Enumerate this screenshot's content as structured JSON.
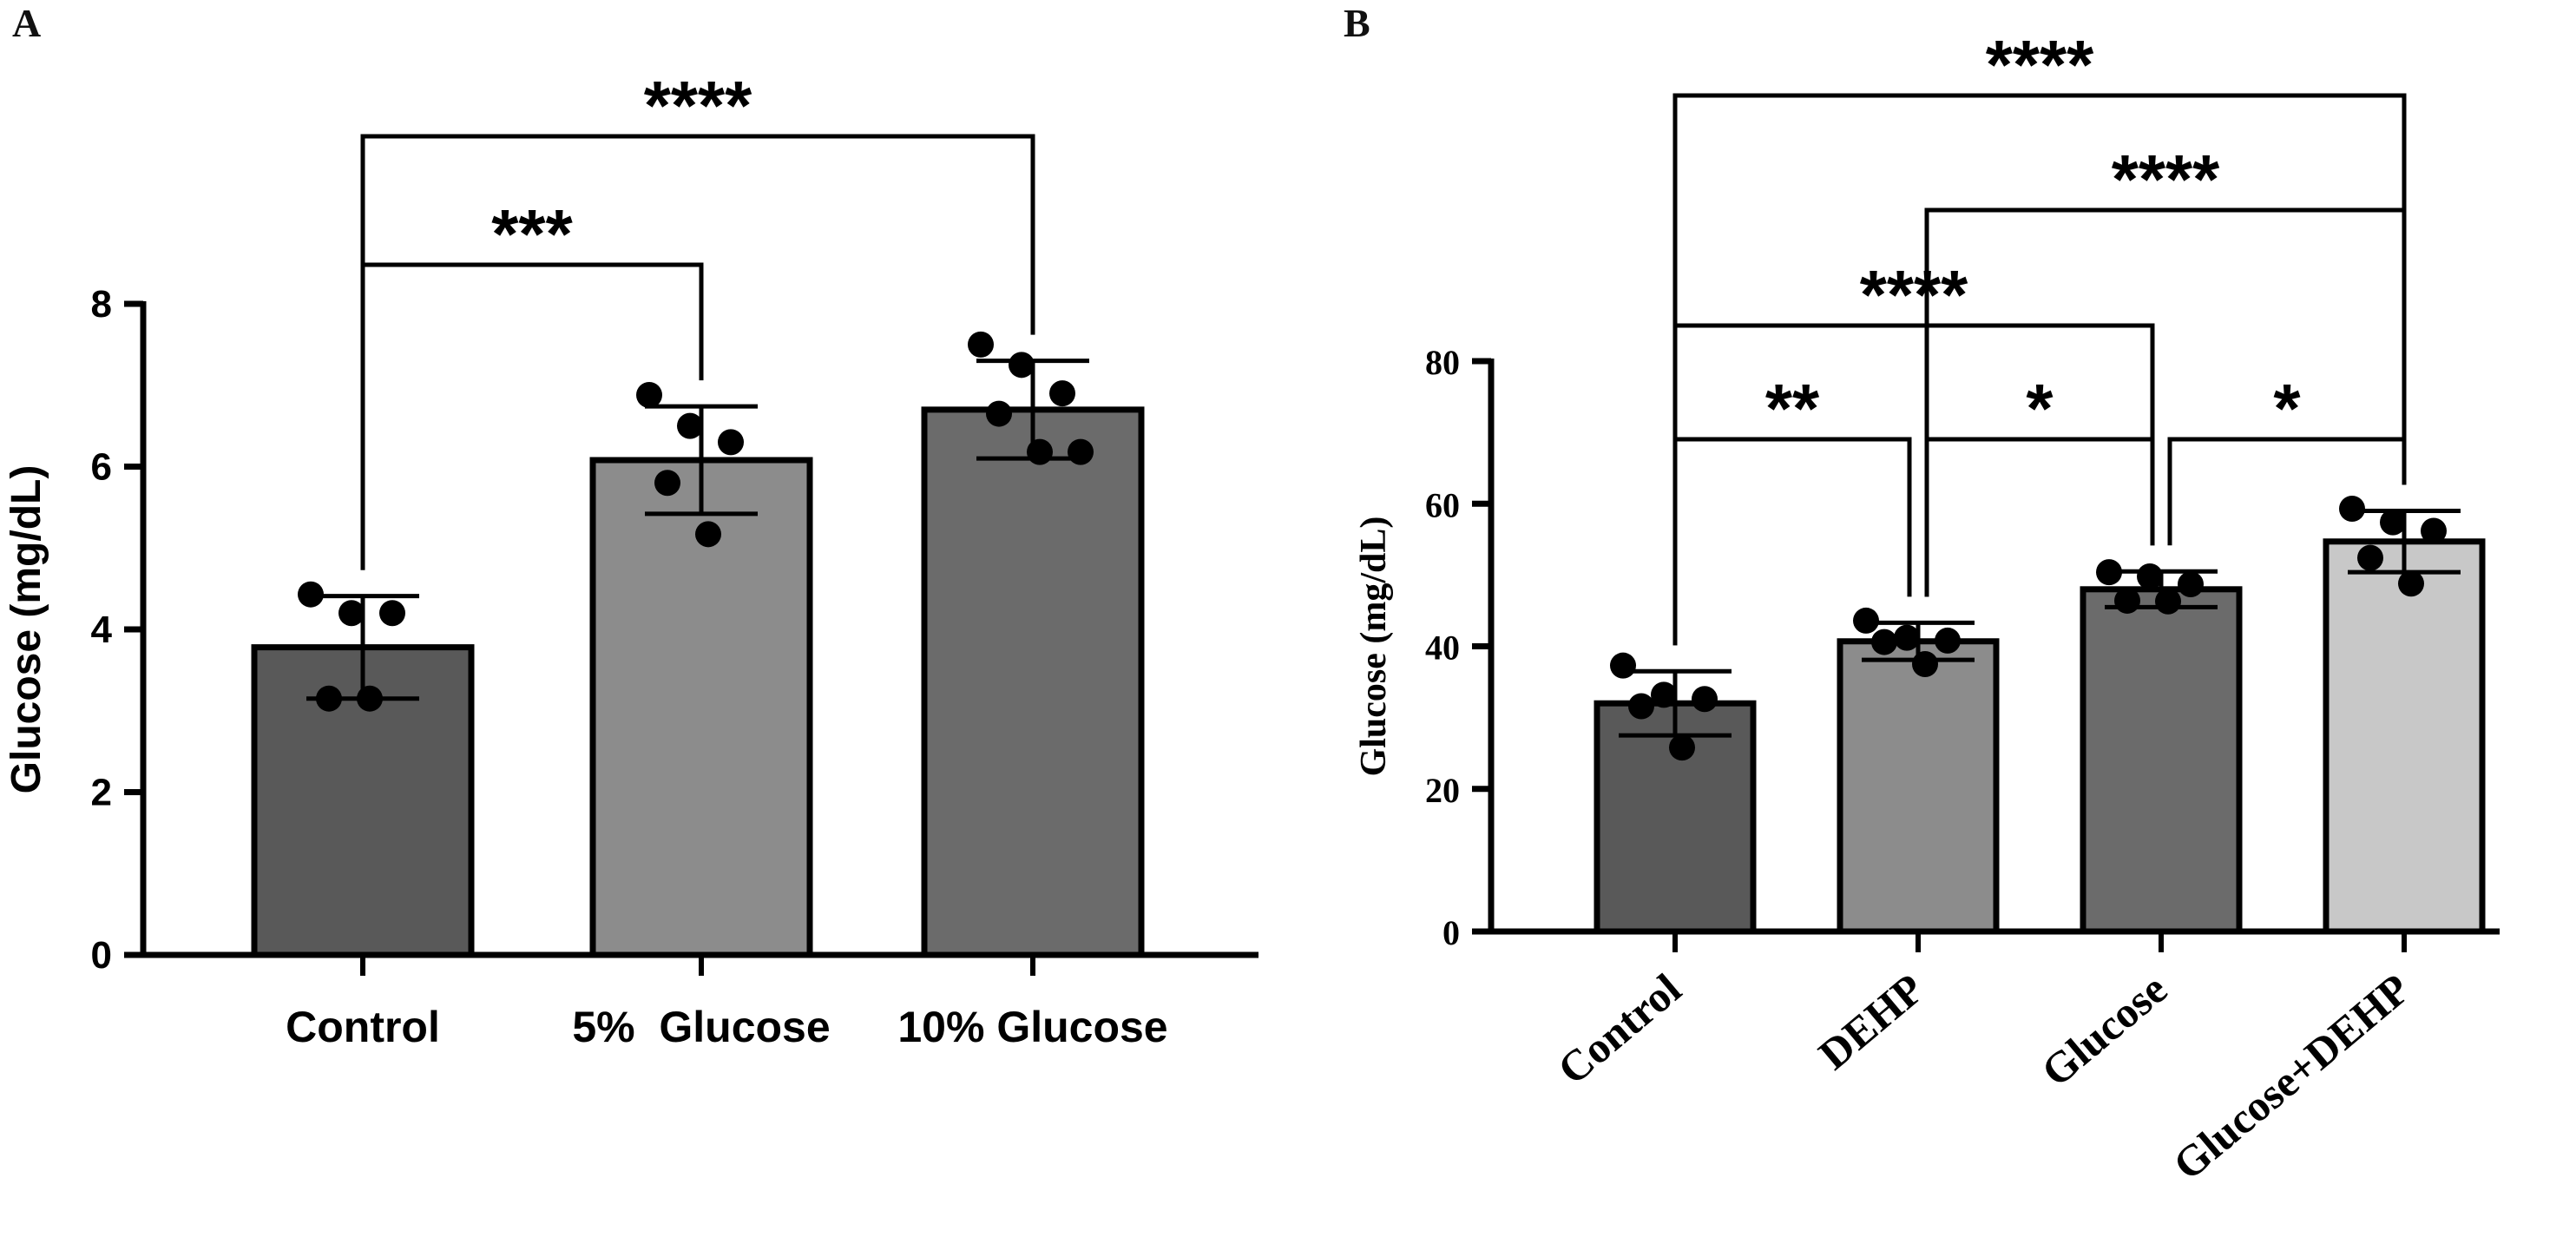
{
  "chart_data": [
    {
      "panel": "A",
      "type": "bar",
      "ylabel": "Glucose (mg/dL)",
      "ylim": [
        0,
        8
      ],
      "yticks": [
        "0",
        "2",
        "4",
        "6",
        "8"
      ],
      "categories": [
        "Control",
        "5%  Glucose",
        "10% Glucose"
      ],
      "values": [
        3.78,
        6.08,
        6.7
      ],
      "sd": [
        0.63,
        0.66,
        0.6
      ],
      "bar_colors": [
        "#595959",
        "#8c8c8c",
        "#6b6b6b"
      ],
      "points": [
        [
          4.43,
          4.2,
          4.2,
          3.15,
          3.15
        ],
        [
          6.88,
          6.5,
          6.3,
          5.8,
          5.17
        ],
        [
          7.5,
          7.25,
          6.9,
          6.65,
          6.18,
          6.18
        ]
      ],
      "significance": [
        {
          "from": 0,
          "to": 1,
          "label": "***",
          "level": 1
        },
        {
          "from": 0,
          "to": 2,
          "label": "****",
          "level": 2
        }
      ]
    },
    {
      "panel": "B",
      "type": "bar",
      "ylabel": "Glucose (mg/dL)",
      "ylim": [
        0,
        80
      ],
      "yticks": [
        "0",
        "20",
        "40",
        "60",
        "80"
      ],
      "categories": [
        "Control",
        "DEHP",
        "Glucose",
        "Glucose+DEHP"
      ],
      "values": [
        32,
        40.7,
        48,
        54.7
      ],
      "sd": [
        4.5,
        2.6,
        2.5,
        4.3
      ],
      "bar_colors": [
        "#595959",
        "#8c8c8c",
        "#6b6b6b",
        "#c8c8c8"
      ],
      "points": [
        [
          37.3,
          33.2,
          32.6,
          31.6,
          25.8
        ],
        [
          43.6,
          41.2,
          40.8,
          40.6,
          37.5
        ],
        [
          50.4,
          49.8,
          48.7,
          46.4,
          46.3
        ],
        [
          59.3,
          57.4,
          56.2,
          52.4,
          48.8
        ]
      ],
      "significance": [
        {
          "from": 0,
          "to": 1,
          "label": "**",
          "level": 1
        },
        {
          "from": 1,
          "to": 2,
          "label": "*",
          "level": 1
        },
        {
          "from": 2,
          "to": 3,
          "label": "*",
          "level": 1
        },
        {
          "from": 0,
          "to": 2,
          "label": "****",
          "level": 2
        },
        {
          "from": 1,
          "to": 3,
          "label": "****",
          "level": 3
        },
        {
          "from": 0,
          "to": 3,
          "label": "****",
          "level": 4
        }
      ]
    }
  ]
}
